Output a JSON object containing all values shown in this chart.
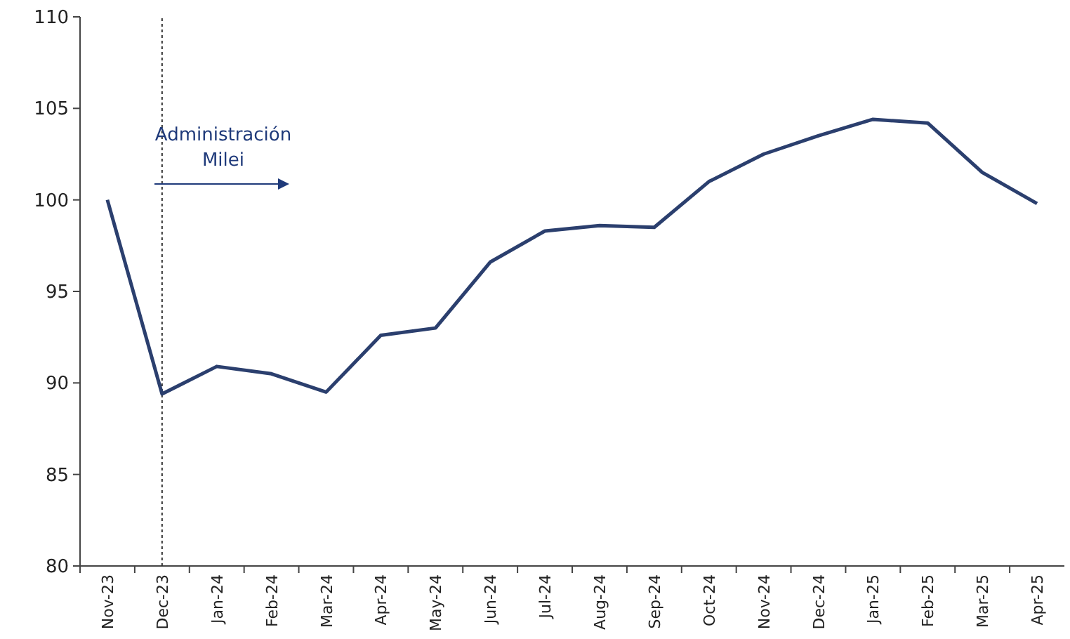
{
  "chart_data": {
    "type": "line",
    "categories": [
      "Nov-23",
      "Dec-23",
      "Jan-24",
      "Feb-24",
      "Mar-24",
      "Apr-24",
      "May-24",
      "Jun-24",
      "Jul-24",
      "Aug-24",
      "Sep-24",
      "Oct-24",
      "Nov-24",
      "Dec-24",
      "Jan-25",
      "Feb-25",
      "Mar-25",
      "Apr-25"
    ],
    "series": [
      {
        "color": "#2b3f6e",
        "values": [
          100,
          89.4,
          90.9,
          90.5,
          89.5,
          92.6,
          93.0,
          96.6,
          98.3,
          98.6,
          98.5,
          101.0,
          102.5,
          103.5,
          104.4,
          104.2,
          101.5,
          99.8
        ]
      }
    ],
    "ylim": [
      80,
      110
    ],
    "yticks": [
      80,
      85,
      90,
      95,
      100,
      105,
      110
    ],
    "grid": false,
    "marker": "none",
    "line_style": "solid",
    "ref_lines": [
      {
        "axis": "x",
        "value": "Dec-23",
        "line_style": "dotted",
        "color": "#333333"
      }
    ],
    "annotations": [
      {
        "text": "Administración Milei"
      }
    ]
  }
}
